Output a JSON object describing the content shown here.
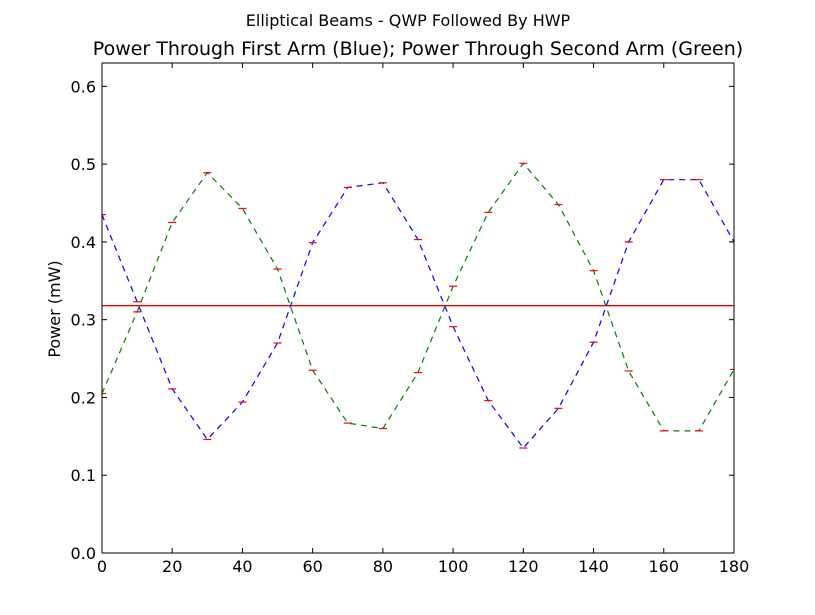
{
  "chart_data": {
    "type": "line",
    "suptitle": "Elliptical Beams - QWP Followed By HWP",
    "title": "Power Through First Arm (Blue); Power Through Second Arm (Green)",
    "xlabel": "",
    "ylabel": "Power (mW)",
    "xlim": [
      0,
      180
    ],
    "ylim": [
      0.0,
      0.63
    ],
    "xticks": [
      0,
      20,
      40,
      60,
      80,
      100,
      120,
      140,
      160,
      180
    ],
    "xtick_labels": [
      "0",
      "20",
      "40",
      "60",
      "80",
      "100",
      "120",
      "140",
      "160",
      "180"
    ],
    "yticks": [
      0.0,
      0.1,
      0.2,
      0.3,
      0.4,
      0.5,
      0.6
    ],
    "ytick_labels": [
      "0.0",
      "0.1",
      "0.2",
      "0.3",
      "0.4",
      "0.5",
      "0.6"
    ],
    "grid": false,
    "x": [
      0,
      10,
      20,
      30,
      40,
      50,
      60,
      70,
      80,
      90,
      100,
      110,
      120,
      130,
      140,
      150,
      160,
      170,
      180
    ],
    "series": [
      {
        "color": "#0000ff",
        "style": "dashed",
        "values": [
          0.435,
          0.323,
          0.211,
          0.146,
          0.194,
          0.27,
          0.399,
          0.47,
          0.476,
          0.403,
          0.291,
          0.196,
          0.135,
          0.186,
          0.271,
          0.4,
          0.48,
          0.48,
          0.4
        ]
      },
      {
        "color": "#008000",
        "style": "dashed",
        "values": [
          0.205,
          0.31,
          0.425,
          0.489,
          0.443,
          0.365,
          0.235,
          0.167,
          0.16,
          0.232,
          0.343,
          0.438,
          0.501,
          0.448,
          0.363,
          0.234,
          0.157,
          0.157,
          0.236
        ]
      }
    ],
    "error_bar_color": "#ff0000",
    "reference_line": {
      "y": 0.318,
      "color": "#ff0000"
    }
  }
}
